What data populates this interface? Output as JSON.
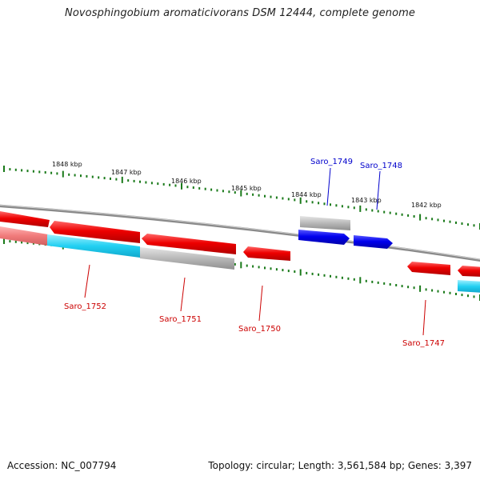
{
  "title": "Novosphingobium aromaticivorans DSM 12444, complete genome",
  "footer": {
    "accession": "Accession: NC_007794",
    "summary": "Topology: circular; Length: 3,561,584 bp; Genes: 3,397"
  },
  "colors": {
    "forward_label": "#0000cc",
    "reverse_label": "#cc0000",
    "tick": "#1a7a1a",
    "backbone": "#888888"
  },
  "scale_labels": [
    "1848 kbp",
    "1847 kbp",
    "1846 kbp",
    "1845 kbp",
    "1844 kbp",
    "1843 kbp",
    "1842 kbp"
  ],
  "genes": [
    {
      "name": "Saro_1752",
      "color": "red",
      "strand": "reverse"
    },
    {
      "name": "Saro_1751",
      "color": "red",
      "strand": "reverse"
    },
    {
      "name": "Saro_1750",
      "color": "red",
      "strand": "reverse"
    },
    {
      "name": "Saro_1749",
      "color": "blue",
      "strand": "forward"
    },
    {
      "name": "Saro_1748",
      "color": "blue",
      "strand": "forward"
    },
    {
      "name": "Saro_1747",
      "color": "red",
      "strand": "reverse"
    }
  ]
}
